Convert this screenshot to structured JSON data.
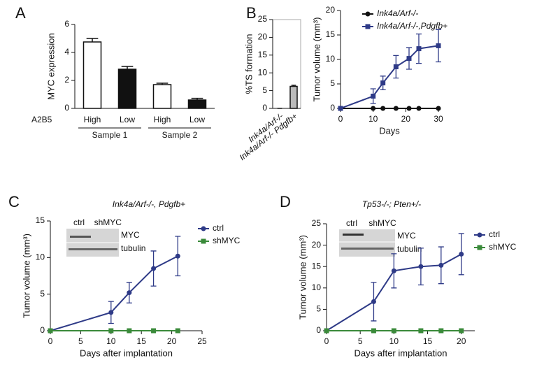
{
  "chart_data": [
    {
      "type": "bar",
      "panel": "A",
      "ylabel": "MYC expression",
      "row_label": "A2B5",
      "categories": [
        "High",
        "Low",
        "High",
        "Low"
      ],
      "groups": [
        "Sample 1",
        "Sample 2"
      ],
      "values": [
        4.75,
        2.8,
        1.7,
        0.6
      ],
      "errors": [
        0.25,
        0.2,
        0.1,
        0.12
      ],
      "colors": [
        "#ffffff",
        "#111111",
        "#ffffff",
        "#111111"
      ],
      "ylim": [
        0,
        6
      ],
      "yticks": [
        0,
        2,
        4,
        6
      ]
    },
    {
      "type": "bar",
      "panel": "B",
      "ylabel": "%TS formation",
      "categories": [
        "Ink4a/Arf-/-",
        "Ink4a/Arf-/- Pdgfb+"
      ],
      "values": [
        0,
        6.2
      ],
      "errors": [
        0,
        0.3
      ],
      "colors": [
        "#bbbbbb",
        "#bbbbbb"
      ],
      "ylim": [
        0,
        25
      ],
      "yticks": [
        0,
        5,
        10,
        15,
        20,
        25
      ]
    },
    {
      "type": "line",
      "xlabel": "Days",
      "ylabel": "Tumor volume (mm³)",
      "x": [
        0,
        10,
        13,
        17,
        21,
        24,
        30
      ],
      "series": [
        {
          "name": "Ink4a/Arf-/-",
          "color": "#111111",
          "marker": "circle",
          "values": [
            0,
            0,
            0,
            0,
            0,
            0,
            0
          ]
        },
        {
          "name": "Ink4a/Arf-/-,Pdgfb+",
          "color": "#2e3a87",
          "marker": "square",
          "values": [
            0,
            2.5,
            5.2,
            8.5,
            10.2,
            12.2,
            12.8
          ],
          "errors": [
            0,
            1.5,
            1.4,
            2.3,
            2.2,
            3.0,
            3.3
          ]
        }
      ],
      "xlim": [
        0,
        30
      ],
      "xticks": [
        0,
        10,
        20,
        30
      ],
      "ylim": [
        0,
        20
      ],
      "yticks": [
        0,
        5,
        10,
        15,
        20
      ]
    },
    {
      "type": "line",
      "panel": "C",
      "title": "Ink4a/Arf-/-, Pdgfb+",
      "xlabel": "Days after implantation",
      "ylabel": "Tumor volume (mm³)",
      "inset": {
        "columns": [
          "ctrl",
          "shMYC"
        ],
        "rows": [
          "MYC",
          "tubulin"
        ]
      },
      "x": [
        0,
        10,
        13,
        17,
        21
      ],
      "series": [
        {
          "name": "ctrl",
          "color": "#2e3a87",
          "marker": "circle",
          "values": [
            0,
            2.5,
            5.2,
            8.5,
            10.2
          ],
          "errors": [
            0,
            1.5,
            1.4,
            2.4,
            2.7
          ]
        },
        {
          "name": "shMYC",
          "color": "#3a8a3a",
          "marker": "square",
          "values": [
            0,
            0,
            0,
            0,
            0
          ]
        }
      ],
      "xlim": [
        0,
        25
      ],
      "xticks": [
        0,
        5,
        10,
        15,
        20,
        25
      ],
      "ylim": [
        0,
        15
      ],
      "yticks": [
        0,
        5,
        10,
        15
      ]
    },
    {
      "type": "line",
      "panel": "D",
      "title": "Tp53-/-; Pten+/-",
      "xlabel": "Days after implantation",
      "ylabel": "Tumor volume (mm³)",
      "inset": {
        "columns": [
          "ctrl",
          "shMYC"
        ],
        "rows": [
          "MYC",
          "tubulin"
        ]
      },
      "x": [
        0,
        7,
        10,
        14,
        17,
        20
      ],
      "series": [
        {
          "name": "ctrl",
          "color": "#2e3a87",
          "marker": "circle",
          "values": [
            0,
            6.8,
            14,
            15,
            15.3,
            17.9
          ],
          "errors": [
            0,
            4.5,
            4,
            4.3,
            4.3,
            4.8
          ]
        },
        {
          "name": "shMYC",
          "color": "#3a8a3a",
          "marker": "square",
          "values": [
            0,
            0,
            0,
            0,
            0,
            0
          ]
        }
      ],
      "xlim": [
        0,
        22
      ],
      "xticks": [
        0,
        5,
        10,
        15,
        20
      ],
      "ylim": [
        0,
        25
      ],
      "yticks": [
        0,
        5,
        10,
        15,
        20,
        25
      ]
    }
  ]
}
